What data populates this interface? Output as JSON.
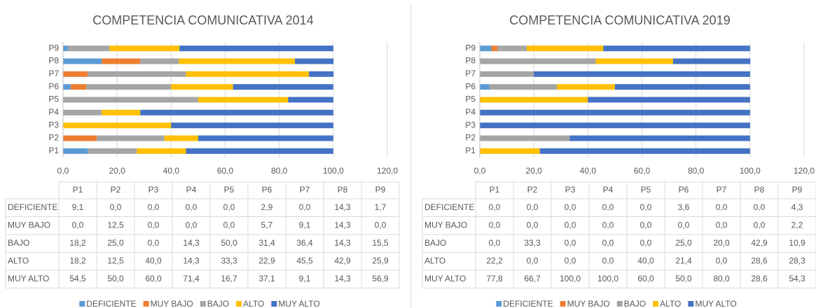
{
  "chart_data": [
    {
      "type": "stacked-bar-horizontal",
      "title": "COMPETENCIA COMUNICATIVA 2014",
      "categories": [
        "P1",
        "P2",
        "P3",
        "P4",
        "P5",
        "P6",
        "P7",
        "P8",
        "P9"
      ],
      "series": [
        {
          "name": "DEFICIENTE",
          "color": "#5b9bd5",
          "values": [
            9.1,
            0,
            0,
            0,
            0,
            2.9,
            0,
            14.3,
            1.7
          ],
          "value_labels": [
            "9,1",
            "0,0",
            "0,0",
            "0,0",
            "0,0",
            "2,9",
            "0,0",
            "14,3",
            "1,7"
          ]
        },
        {
          "name": "MUY BAJO",
          "color": "#ed7d31",
          "values": [
            0,
            12.5,
            0,
            0,
            0,
            5.7,
            9.1,
            14.3,
            0
          ],
          "value_labels": [
            "0,0",
            "12,5",
            "0,0",
            "0,0",
            "0,0",
            "5,7",
            "9,1",
            "14,3",
            "0,0"
          ]
        },
        {
          "name": "BAJO",
          "color": "#a5a5a5",
          "values": [
            18.2,
            25,
            0,
            14.3,
            50,
            31.4,
            36.4,
            14.3,
            15.5
          ],
          "value_labels": [
            "18,2",
            "25,0",
            "0,0",
            "14,3",
            "50,0",
            "31,4",
            "36,4",
            "14,3",
            "15,5"
          ]
        },
        {
          "name": "ALTO",
          "color": "#ffc000",
          "values": [
            18.2,
            12.5,
            40,
            14.3,
            33.3,
            22.9,
            45.5,
            42.9,
            25.9
          ],
          "value_labels": [
            "18,2",
            "12,5",
            "40,0",
            "14,3",
            "33,3",
            "22,9",
            "45,5",
            "42,9",
            "25,9"
          ]
        },
        {
          "name": "MUY ALTO",
          "color": "#4472c4",
          "values": [
            54.5,
            50,
            60,
            71.4,
            16.7,
            37.1,
            9.1,
            14.3,
            56.9
          ],
          "value_labels": [
            "54,5",
            "50,0",
            "60,0",
            "71,4",
            "16,7",
            "37,1",
            "9,1",
            "14,3",
            "56,9"
          ]
        }
      ],
      "xlim": [
        0,
        120
      ],
      "xticks": [
        {
          "value": 0,
          "label": "0,0"
        },
        {
          "value": 20,
          "label": "20,0"
        },
        {
          "value": 40,
          "label": "40,0"
        },
        {
          "value": 60,
          "label": "60,0"
        },
        {
          "value": 80,
          "label": "80,0"
        },
        {
          "value": 100,
          "label": "100,0"
        },
        {
          "value": 120,
          "label": "120,0"
        }
      ],
      "grid": true,
      "legend": "bottom",
      "data_table": true
    },
    {
      "type": "stacked-bar-horizontal",
      "title": "COMPETENCIA COMUNICATIVA 2019",
      "categories": [
        "P1",
        "P2",
        "P3",
        "P4",
        "P5",
        "P6",
        "P7",
        "P8",
        "P9"
      ],
      "series": [
        {
          "name": "DEFICIENTE",
          "color": "#5b9bd5",
          "values": [
            0,
            0,
            0,
            0,
            0,
            3.6,
            0,
            0,
            4.3
          ],
          "value_labels": [
            "0,0",
            "0,0",
            "0,0",
            "0,0",
            "0,0",
            "3,6",
            "0,0",
            "0,0",
            "4,3"
          ]
        },
        {
          "name": "MUY BAJO",
          "color": "#ed7d31",
          "values": [
            0,
            0,
            0,
            0,
            0,
            0,
            0,
            0,
            2.2
          ],
          "value_labels": [
            "0,0",
            "0,0",
            "0,0",
            "0,0",
            "0,0",
            "0,0",
            "0,0",
            "0,0",
            "2,2"
          ]
        },
        {
          "name": "BAJO",
          "color": "#a5a5a5",
          "values": [
            0,
            33.3,
            0,
            0,
            0,
            25,
            20,
            42.9,
            10.9
          ],
          "value_labels": [
            "0,0",
            "33,3",
            "0,0",
            "0,0",
            "0,0",
            "25,0",
            "20,0",
            "42,9",
            "10,9"
          ]
        },
        {
          "name": "ALTO",
          "color": "#ffc000",
          "values": [
            22.2,
            0,
            0,
            0,
            40,
            21.4,
            0,
            28.6,
            28.3
          ],
          "value_labels": [
            "22,2",
            "0,0",
            "0,0",
            "0,0",
            "40,0",
            "21,4",
            "0,0",
            "28,6",
            "28,3"
          ]
        },
        {
          "name": "MUY ALTO",
          "color": "#4472c4",
          "values": [
            77.8,
            66.7,
            100,
            100,
            60,
            50,
            80,
            28.6,
            54.3
          ],
          "value_labels": [
            "77,8",
            "66,7",
            "100,0",
            "100,0",
            "60,0",
            "50,0",
            "80,0",
            "28,6",
            "54,3"
          ]
        }
      ],
      "xlim": [
        0,
        120
      ],
      "xticks": [
        {
          "value": 0,
          "label": "0,0"
        },
        {
          "value": 20,
          "label": "20,0"
        },
        {
          "value": 40,
          "label": "40,0"
        },
        {
          "value": 60,
          "label": "60,0"
        },
        {
          "value": 80,
          "label": "80,0"
        },
        {
          "value": 100,
          "label": "100,0"
        },
        {
          "value": 120,
          "label": "120,0"
        }
      ],
      "grid": true,
      "legend": "bottom",
      "data_table": true
    }
  ]
}
